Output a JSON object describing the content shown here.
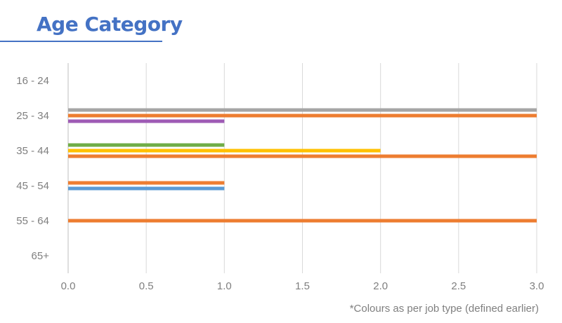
{
  "header": {
    "title": "Age Category"
  },
  "footnote": "*Colours as per job type (defined earlier)",
  "chart_data": {
    "type": "bar",
    "orientation": "horizontal",
    "title": "",
    "xlabel": "",
    "ylabel": "",
    "xlim": [
      0,
      3
    ],
    "x_ticks": [
      "0.0",
      "0.5",
      "1.0",
      "1.5",
      "2.0",
      "2.5",
      "3.0"
    ],
    "categories": [
      "16 - 24",
      "25 - 34",
      "35 - 44",
      "45 - 54",
      "55 - 64",
      "65+"
    ],
    "grid": "vertical",
    "series": [
      {
        "color": "#5b9bd5",
        "values": [
          0,
          0,
          0,
          1,
          0,
          0
        ]
      },
      {
        "color": "#ed7d31",
        "values": [
          0,
          3,
          3,
          1,
          3,
          0
        ]
      },
      {
        "color": "#a5a5a5",
        "values": [
          0,
          3,
          0,
          0,
          0,
          0
        ]
      },
      {
        "color": "#ffc000",
        "values": [
          0,
          0,
          2,
          0,
          0,
          0
        ]
      },
      {
        "color": "#70ad47",
        "values": [
          0,
          0,
          1,
          0,
          0,
          0
        ]
      },
      {
        "color": "#9e5bb5",
        "values": [
          0,
          1,
          0,
          0,
          0,
          0
        ]
      }
    ],
    "bar_stacks": [
      [],
      [
        {
          "series": 2,
          "value": 3
        },
        {
          "series": 1,
          "value": 3
        },
        {
          "series": 5,
          "value": 1
        }
      ],
      [
        {
          "series": 4,
          "value": 1
        },
        {
          "series": 3,
          "value": 2
        },
        {
          "series": 1,
          "value": 3
        }
      ],
      [
        {
          "series": 1,
          "value": 1
        },
        {
          "series": 0,
          "value": 1
        }
      ],
      [
        {
          "series": 1,
          "value": 3
        }
      ],
      []
    ]
  }
}
